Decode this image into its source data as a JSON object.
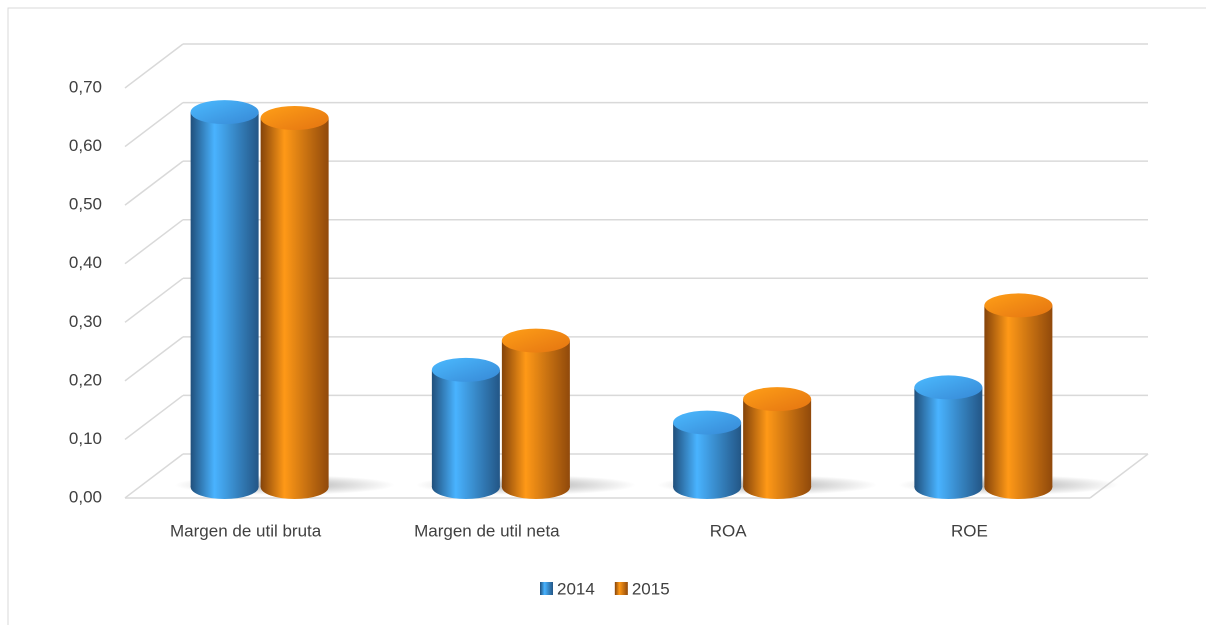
{
  "chart_data": {
    "type": "bar3d",
    "categories": [
      "Margen de util bruta",
      "Margen de util neta",
      "ROA",
      "ROE"
    ],
    "series": [
      {
        "name": "2014",
        "color": "#3a8fe0",
        "values": [
          0.64,
          0.2,
          0.11,
          0.17
        ]
      },
      {
        "name": "2015",
        "color": "#f07a12",
        "values": [
          0.63,
          0.25,
          0.15,
          0.31
        ]
      }
    ],
    "ylim": [
      0,
      0.7
    ],
    "yticks": [
      {
        "value": 0,
        "label": "0,00"
      },
      {
        "value": 0.1,
        "label": "0,10"
      },
      {
        "value": 0.2,
        "label": "0,20"
      },
      {
        "value": 0.3,
        "label": "0,30"
      },
      {
        "value": 0.4,
        "label": "0,40"
      },
      {
        "value": 0.5,
        "label": "0,50"
      },
      {
        "value": 0.6,
        "label": "0,60"
      },
      {
        "value": 0.7,
        "label": "0,70"
      }
    ],
    "grid": true,
    "legend": "bottom"
  }
}
